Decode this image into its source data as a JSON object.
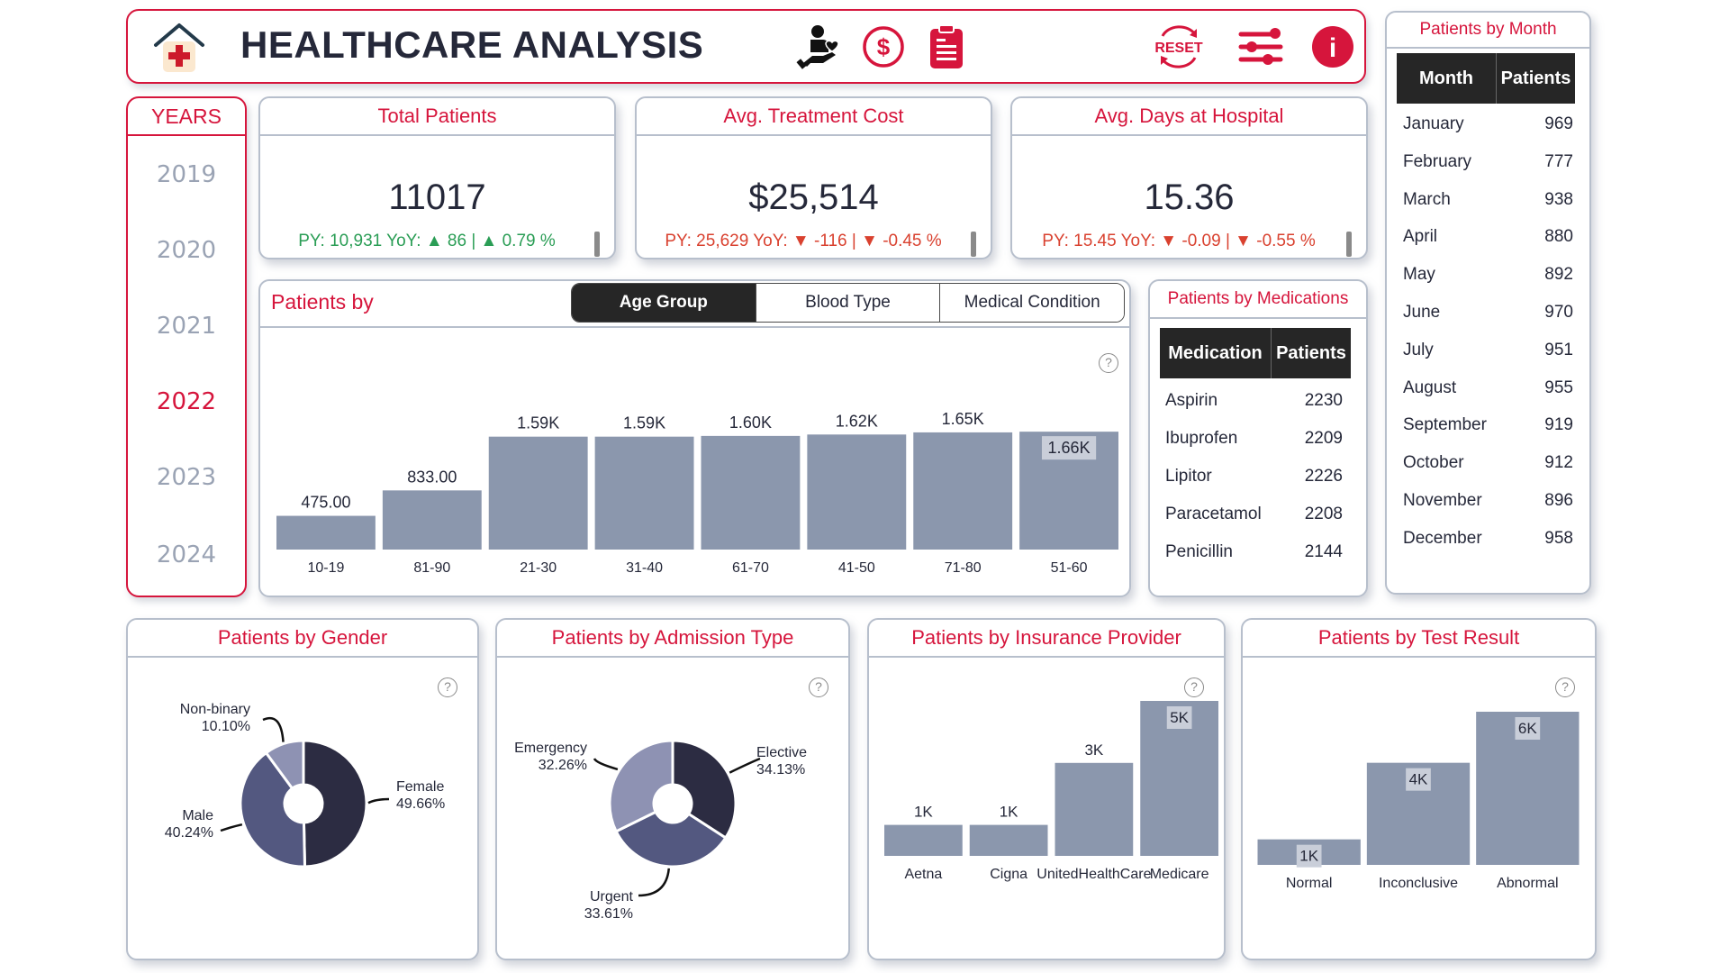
{
  "header": {
    "title": "HEALTHCARE ANALYSIS",
    "icons": [
      "hospital-house-icon",
      "patient-care-icon",
      "dollar-circle-icon",
      "clipboard-icon",
      "reset-icon",
      "filter-sliders-icon",
      "info-icon"
    ],
    "reset_label": "RESET",
    "info_glyph": "i",
    "accent_color": "#d6153c"
  },
  "years": {
    "title": "YEARS",
    "items": [
      "2019",
      "2020",
      "2021",
      "2022",
      "2023",
      "2024"
    ],
    "selected": "2022"
  },
  "kpis": [
    {
      "title": "Total Patients",
      "value": "11017",
      "py_text": "PY: 10,931 YoY: ▲ 86 | ▲ 0.79 %",
      "trend": "up"
    },
    {
      "title": "Avg. Treatment Cost",
      "value": "$25,514",
      "py_text": "PY: 25,629 YoY: ▼ -116 | ▼ -0.45 %",
      "trend": "down"
    },
    {
      "title": "Avg. Days at Hospital",
      "value": "15.36",
      "py_text": "PY: 15.45 YoY: ▼ -0.09 | ▼ -0.55 %",
      "trend": "down"
    }
  ],
  "patients_by": {
    "title": "Patients by",
    "tabs": [
      "Age Group",
      "Blood Type",
      "Medical Condition"
    ],
    "active_tab": "Age Group",
    "help": "?"
  },
  "medications": {
    "title": "Patients by Medications",
    "columns": [
      "Medication",
      "Patients"
    ],
    "rows": [
      [
        "Aspirin",
        "2230"
      ],
      [
        "Ibuprofen",
        "2209"
      ],
      [
        "Lipitor",
        "2226"
      ],
      [
        "Paracetamol",
        "2208"
      ],
      [
        "Penicillin",
        "2144"
      ]
    ]
  },
  "months": {
    "title": "Patients by Month",
    "columns": [
      "Month",
      "Patients"
    ],
    "rows": [
      [
        "January",
        "969"
      ],
      [
        "February",
        "777"
      ],
      [
        "March",
        "938"
      ],
      [
        "April",
        "880"
      ],
      [
        "May",
        "892"
      ],
      [
        "June",
        "970"
      ],
      [
        "July",
        "951"
      ],
      [
        "August",
        "955"
      ],
      [
        "September",
        "919"
      ],
      [
        "October",
        "912"
      ],
      [
        "November",
        "896"
      ],
      [
        "December",
        "958"
      ]
    ]
  },
  "bottom_titles": {
    "gender": "Patients by Gender",
    "admission": "Patients by Admission Type",
    "insurance": "Patients by Insurance Provider",
    "test": "Patients by Test Result"
  },
  "chart_data": [
    {
      "id": "age",
      "type": "bar",
      "title": "Patients by Age Group",
      "categories": [
        "10-19",
        "81-90",
        "21-30",
        "31-40",
        "61-70",
        "41-50",
        "71-80",
        "51-60"
      ],
      "values": [
        475,
        833,
        1590,
        1590,
        1600,
        1620,
        1650,
        1660
      ],
      "labels": [
        "475.00",
        "833.00",
        "1.59K",
        "1.59K",
        "1.60K",
        "1.62K",
        "1.65K",
        "1.66K"
      ],
      "ylim": [
        0,
        1700
      ],
      "color": "#8b97ad",
      "grid": false
    },
    {
      "id": "gender",
      "type": "pie",
      "title": "Patients by Gender",
      "categories": [
        "Female",
        "Male",
        "Non-binary"
      ],
      "values": [
        49.66,
        40.24,
        10.1
      ],
      "labels": [
        "49.66%",
        "40.24%",
        "10.10%"
      ],
      "colors": [
        "#2c2c42",
        "#535880",
        "#8e92b3"
      ]
    },
    {
      "id": "admission",
      "type": "pie",
      "title": "Patients by Admission Type",
      "categories": [
        "Elective",
        "Urgent",
        "Emergency"
      ],
      "values": [
        34.13,
        33.61,
        32.26
      ],
      "labels": [
        "34.13%",
        "33.61%",
        "32.26%"
      ],
      "colors": [
        "#2c2c42",
        "#535880",
        "#8e92b3"
      ]
    },
    {
      "id": "insurance",
      "type": "bar",
      "title": "Patients by Insurance Provider",
      "categories": [
        "Aetna",
        "Cigna",
        "UnitedHealthCare",
        "Medicare"
      ],
      "values": [
        1000,
        1000,
        3000,
        5000
      ],
      "labels": [
        "1K",
        "1K",
        "3K",
        "5K"
      ],
      "ylim": [
        0,
        5000
      ],
      "color": "#8b97ad",
      "grid": false
    },
    {
      "id": "test",
      "type": "bar",
      "title": "Patients by Test Result",
      "categories": [
        "Normal",
        "Inconclusive",
        "Abnormal"
      ],
      "values": [
        1000,
        4000,
        6000
      ],
      "labels": [
        "1K",
        "4K",
        "6K"
      ],
      "ylim": [
        0,
        6000
      ],
      "color": "#8b97ad",
      "grid": false
    }
  ]
}
